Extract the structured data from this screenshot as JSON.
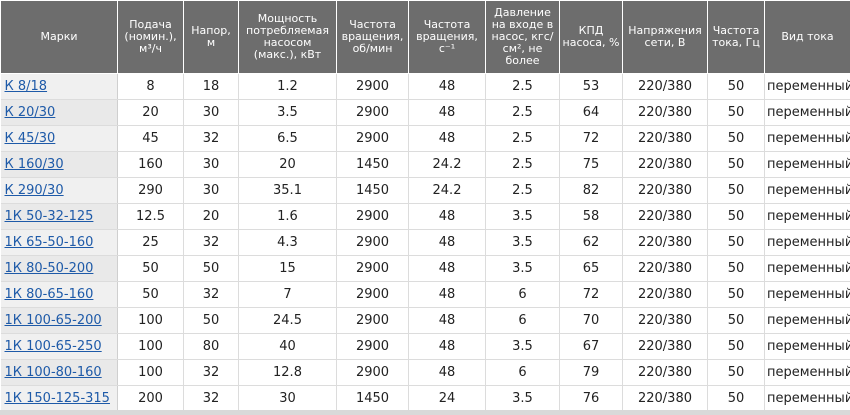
{
  "table": {
    "headers": [
      "Марки",
      "Подача (номин.), м³/ч",
      "Напор, м",
      "Мощность потребляемая насосом (макс.), кВт",
      "Частота вращения, об/мин",
      "Частота вращения, с⁻¹",
      "Давление на входе в насос, кгс/см², не более",
      "КПД насоса, %",
      "Напряжения сети, В",
      "Частота тока, Гц",
      "Вид тока"
    ],
    "rows": [
      [
        "К 8/18",
        "8",
        "18",
        "1.2",
        "2900",
        "48",
        "2.5",
        "53",
        "220/380",
        "50",
        "переменный"
      ],
      [
        "К 20/30",
        "20",
        "30",
        "3.5",
        "2900",
        "48",
        "2.5",
        "64",
        "220/380",
        "50",
        "переменный"
      ],
      [
        "К 45/30",
        "45",
        "32",
        "6.5",
        "2900",
        "48",
        "2.5",
        "72",
        "220/380",
        "50",
        "переменный"
      ],
      [
        "К 160/30",
        "160",
        "30",
        "20",
        "1450",
        "24.2",
        "2.5",
        "75",
        "220/380",
        "50",
        "переменный"
      ],
      [
        "К 290/30",
        "290",
        "30",
        "35.1",
        "1450",
        "24.2",
        "2.5",
        "82",
        "220/380",
        "50",
        "переменный"
      ],
      [
        "1К 50-32-125",
        "12.5",
        "20",
        "1.6",
        "2900",
        "48",
        "3.5",
        "58",
        "220/380",
        "50",
        "переменный"
      ],
      [
        "1К 65-50-160",
        "25",
        "32",
        "4.3",
        "2900",
        "48",
        "3.5",
        "62",
        "220/380",
        "50",
        "переменный"
      ],
      [
        "1К 80-50-200",
        "50",
        "50",
        "15",
        "2900",
        "48",
        "3.5",
        "65",
        "220/380",
        "50",
        "переменный"
      ],
      [
        "1К 80-65-160",
        "50",
        "32",
        "7",
        "2900",
        "48",
        "6",
        "72",
        "220/380",
        "50",
        "переменный"
      ],
      [
        "1К 100-65-200",
        "100",
        "50",
        "24.5",
        "2900",
        "48",
        "6",
        "70",
        "220/380",
        "50",
        "переменный"
      ],
      [
        "1К 100-65-250",
        "100",
        "80",
        "40",
        "2900",
        "48",
        "3.5",
        "67",
        "220/380",
        "50",
        "переменный"
      ],
      [
        "1К 100-80-160",
        "100",
        "32",
        "12.8",
        "2900",
        "48",
        "6",
        "79",
        "220/380",
        "50",
        "переменный"
      ],
      [
        "1К 150-125-315",
        "200",
        "32",
        "30",
        "1450",
        "24",
        "3.5",
        "76",
        "220/380",
        "50",
        "переменный"
      ]
    ]
  }
}
